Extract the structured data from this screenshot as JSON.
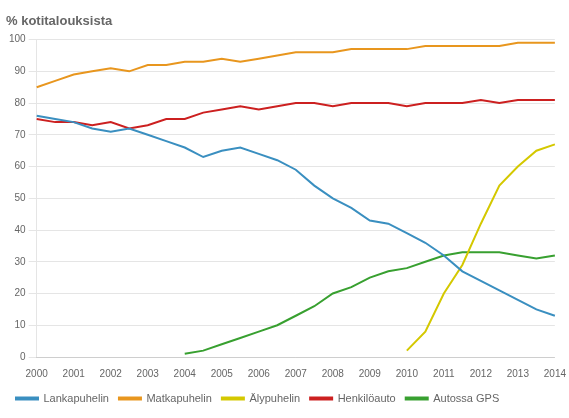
{
  "chart_data": {
    "type": "line",
    "title": "% kotitalouksista",
    "categories": [
      "2000",
      null,
      "2001",
      null,
      "2002",
      null,
      "2003",
      null,
      "2004",
      null,
      "2005",
      null,
      "2006",
      null,
      "2007",
      null,
      "2008",
      null,
      "2009",
      null,
      "2010",
      null,
      "2011",
      null,
      "2012",
      null,
      "2013",
      null,
      "2014"
    ],
    "series": [
      {
        "name": "Lankapuhelin",
        "color": "#3A8FC0",
        "values": [
          76,
          75,
          74,
          72,
          71,
          72,
          70,
          68,
          66,
          63,
          65,
          66,
          64,
          62,
          59,
          54,
          50,
          47,
          43,
          42,
          39,
          36,
          32,
          27,
          24,
          21,
          18,
          15,
          13
        ]
      },
      {
        "name": "Matkapuhelin",
        "color": "#E8961E",
        "values": [
          85,
          87,
          89,
          90,
          91,
          90,
          92,
          92,
          93,
          93,
          94,
          93,
          94,
          95,
          96,
          96,
          96,
          97,
          97,
          97,
          97,
          98,
          98,
          98,
          98,
          98,
          99,
          99,
          99
        ]
      },
      {
        "name": "Älypuhelin",
        "color": "#D4C800",
        "values": [
          null,
          null,
          null,
          null,
          null,
          null,
          null,
          null,
          null,
          null,
          null,
          null,
          null,
          null,
          null,
          null,
          null,
          null,
          null,
          null,
          2,
          8,
          20,
          29,
          42,
          54,
          60,
          65,
          67
        ]
      },
      {
        "name": "Henkilöauto",
        "color": "#CC2020",
        "values": [
          75,
          74,
          74,
          73,
          74,
          72,
          73,
          75,
          75,
          77,
          78,
          79,
          78,
          79,
          80,
          80,
          79,
          80,
          80,
          80,
          79,
          80,
          80,
          80,
          81,
          80,
          81,
          81,
          81
        ]
      },
      {
        "name": "Autossa GPS",
        "color": "#38A030",
        "values": [
          null,
          null,
          null,
          null,
          null,
          null,
          null,
          null,
          1,
          2,
          4,
          6,
          8,
          10,
          13,
          16,
          20,
          22,
          25,
          27,
          28,
          30,
          32,
          33,
          33,
          33,
          32,
          31,
          32
        ]
      }
    ],
    "ylim": [
      0,
      100
    ],
    "yticks": [
      0,
      10,
      20,
      30,
      40,
      50,
      60,
      70,
      80,
      90,
      100
    ],
    "grid": true,
    "legend": "lower left"
  }
}
